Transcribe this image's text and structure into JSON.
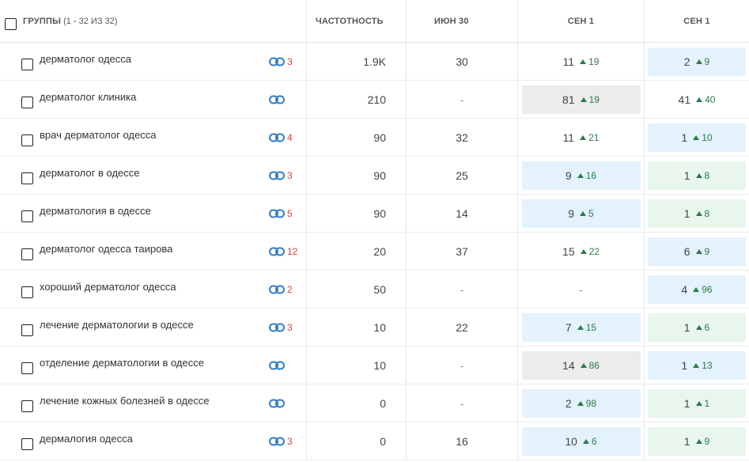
{
  "header": {
    "groups_label": "ГРУППЫ",
    "groups_range": "(1 - 32 ИЗ 32)",
    "freq_label": "ЧАСТОТНОСТЬ",
    "jun_label": "ИЮН 30",
    "sep1_label": "СЕН 1",
    "sep2_label": "СЕН 1"
  },
  "colors": {
    "blue_cell": "#e3f2fc",
    "green_cell": "#e8f6ec",
    "gray_cell": "#ececec",
    "delta_up": "#2b7a4b",
    "link_count": "#e0433b",
    "link_icon": "#2f7ec9"
  },
  "rows": [
    {
      "keyword": "дерматолог одесса",
      "links": "3",
      "freq": "1.9K",
      "jun": "30",
      "s1": {
        "pos": "11",
        "delta": "19",
        "bg": "none"
      },
      "s2": {
        "pos": "2",
        "delta": "9",
        "bg": "blue"
      }
    },
    {
      "keyword": "дерматолог клиника",
      "links": "",
      "freq": "210",
      "jun": "-",
      "s1": {
        "pos": "81",
        "delta": "19",
        "bg": "gray"
      },
      "s2": {
        "pos": "41",
        "delta": "40",
        "bg": "none"
      }
    },
    {
      "keyword": "врач дерматолог одесса",
      "links": "4",
      "freq": "90",
      "jun": "32",
      "s1": {
        "pos": "11",
        "delta": "21",
        "bg": "none"
      },
      "s2": {
        "pos": "1",
        "delta": "10",
        "bg": "blue"
      }
    },
    {
      "keyword": "дерматолог в одессе",
      "links": "3",
      "freq": "90",
      "jun": "25",
      "s1": {
        "pos": "9",
        "delta": "16",
        "bg": "blue"
      },
      "s2": {
        "pos": "1",
        "delta": "8",
        "bg": "green"
      }
    },
    {
      "keyword": "дерматология в одессе",
      "links": "5",
      "freq": "90",
      "jun": "14",
      "s1": {
        "pos": "9",
        "delta": "5",
        "bg": "blue"
      },
      "s2": {
        "pos": "1",
        "delta": "8",
        "bg": "green"
      }
    },
    {
      "keyword": "дерматолог одесса таирова",
      "links": "12",
      "freq": "20",
      "jun": "37",
      "s1": {
        "pos": "15",
        "delta": "22",
        "bg": "none"
      },
      "s2": {
        "pos": "6",
        "delta": "9",
        "bg": "blue"
      }
    },
    {
      "keyword": "хороший дерматолог одесса",
      "links": "2",
      "freq": "50",
      "jun": "-",
      "s1": {
        "pos": "-",
        "delta": "",
        "bg": "none"
      },
      "s2": {
        "pos": "4",
        "delta": "96",
        "bg": "blue"
      }
    },
    {
      "keyword": "лечение дерматологии в одессе",
      "links": "3",
      "freq": "10",
      "jun": "22",
      "s1": {
        "pos": "7",
        "delta": "15",
        "bg": "blue"
      },
      "s2": {
        "pos": "1",
        "delta": "6",
        "bg": "green"
      }
    },
    {
      "keyword": "отделение дерматологии в одессе",
      "links": "",
      "freq": "10",
      "jun": "-",
      "s1": {
        "pos": "14",
        "delta": "86",
        "bg": "gray"
      },
      "s2": {
        "pos": "1",
        "delta": "13",
        "bg": "blue"
      }
    },
    {
      "keyword": "лечение кожных болезней в одессе",
      "links": "",
      "freq": "0",
      "jun": "-",
      "s1": {
        "pos": "2",
        "delta": "98",
        "bg": "blue"
      },
      "s2": {
        "pos": "1",
        "delta": "1",
        "bg": "green"
      }
    },
    {
      "keyword": "дермалогия одесса",
      "links": "3",
      "freq": "0",
      "jun": "16",
      "s1": {
        "pos": "10",
        "delta": "6",
        "bg": "blue"
      },
      "s2": {
        "pos": "1",
        "delta": "9",
        "bg": "green"
      }
    }
  ]
}
